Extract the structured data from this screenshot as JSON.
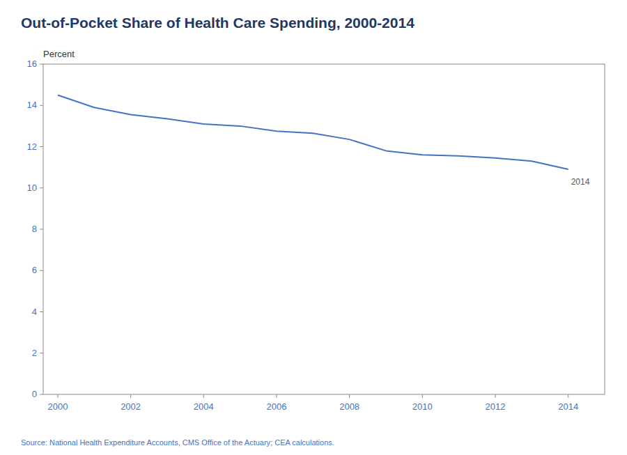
{
  "chart_data": {
    "type": "line",
    "title": "Out-of-Pocket Share of Health Care Spending, 2000-2014",
    "y_label": "Percent",
    "source": "Source: National Health Expenditure Accounts, CMS Office of the Actuary; CEA calculations.",
    "annotations": [
      "2014"
    ],
    "x": [
      2000,
      2001,
      2002,
      2003,
      2004,
      2005,
      2006,
      2007,
      2008,
      2009,
      2010,
      2011,
      2012,
      2013,
      2014
    ],
    "values": [
      14.5,
      13.9,
      13.55,
      13.35,
      13.1,
      13.0,
      12.75,
      12.65,
      12.35,
      11.8,
      11.6,
      11.55,
      11.45,
      11.3,
      10.9
    ],
    "color": "#4472C4",
    "xlim": [
      1999.6,
      2015.0
    ],
    "xticks": [
      2000,
      2002,
      2004,
      2006,
      2008,
      2010,
      2012,
      2014
    ],
    "ylim": [
      0,
      16
    ],
    "yticks": [
      0,
      2,
      4,
      6,
      8,
      10,
      12,
      14,
      16
    ],
    "grid": false
  }
}
